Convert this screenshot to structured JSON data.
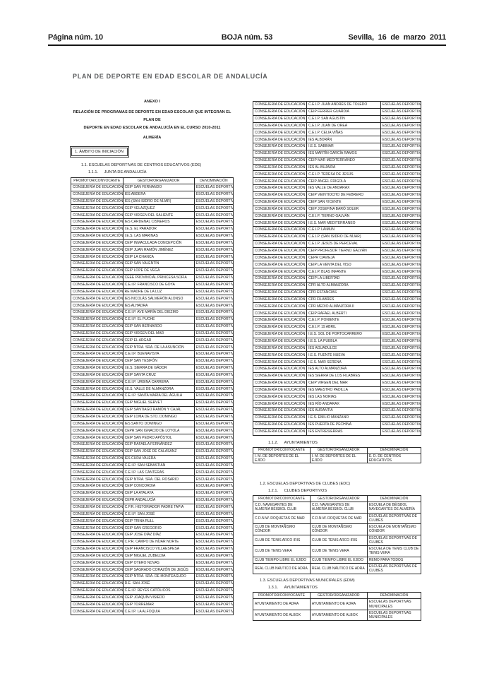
{
  "page_header": {
    "left": "Página núm. 10",
    "center": "BOJA núm. 53",
    "right": "Sevilla, 16 de marzo 2011"
  },
  "doc": {
    "title": "PLAN DE DEPORTE EN EDAD ESCOLAR DE ANDALUCÍA",
    "anexo": "ANEXO I",
    "subtitle_line1": "RELACIÓN DE PROGRAMAS DE DEPORTE EN EDAD ESCOLAR QUE INTEGRAN EL PLAN DE",
    "subtitle_line2": "DEPORTE EN EDAD ESCOLAR DE ANDALUCÍA EN EL CURSO 2010-2011",
    "province": "ALMERÍA",
    "ambito_box": "1. ÁMBITO DE INICIACIÓN"
  },
  "sections": {
    "s11": "1.1. ESCUELAS DEPORTIVAS DE CENTROS EDUCATIVOS (EDE)",
    "s111_num": "1.1.1.",
    "s111_label": "JUNTA DE ANDALUCÍA",
    "s112_num": "1.1.2.",
    "s112_label": "AYUNTAMIENTOS",
    "s12": "1.2. ESCUELAS DEPORTIVAS DE CLUBES (EDC)",
    "s121_num": "1.2.1.",
    "s121_label": "CLUBES DEPORTIVOS",
    "s13": "1.3. ESCUELAS DEPORTIVAS MUNICIPALES (EDM)",
    "s131_num": "1.3.1.",
    "s131_label": "AYUNTAMIENTOS"
  },
  "column_headers": [
    "PROMOTOR/CONVOCANTE",
    "GESTOR/ORGANIZADOR",
    "DENOMINACIÓN"
  ],
  "tables": {
    "ede_left": {
      "promotor": "CONSEJERÍA DE EDUCACIÓN",
      "denominacion": "ESCUELAS DEPORTIVAS",
      "gestores": [
        "CEIP SAN FERNANDO",
        "IES ABDERA",
        "IES (SAN ISIDRO DE NÍJAR)",
        "CEIP VELÁZQUEZ",
        "CEIP VIRGEN DEL SALIENTE",
        "IES CARDENAL CISNEROS",
        "I.E.S. EL PARADOR",
        "I.E.S. LAS MARINAS",
        "CEIP INMACULADA CONCEPCIÓN",
        "CEIP JUAN RAMÓN JIMÉNEZ",
        "CEIP LA CHANCA",
        "CEIP SAN VALENTÍN",
        "CEIP LOPE DE VEGA",
        "CEEE PROVINCIAL PRINCESA SOFÍA",
        "C.E.I.P. FRANCISCO DE GOYA",
        "RE MADRE DE LA LUZ",
        "IES NICOLÁS SALMERÓN ALONSO",
        "IES ALHADRA",
        "C.E.I.P. AVE MARÍA DEL DIEZMO",
        "C.E.I.P. EL PUCHE",
        "CEIP SAN BERNARDO",
        "CEIP VIRGEN DEL MAR",
        "CEIP EL ARGAR",
        "CEIP NTRA. SRA. DE LA ASUNCIÓN",
        "C.E.I.P. BUENAVISTA",
        "CEIP SAN TESIFÓN",
        "I.E.S. SIERRA DE GÁDOR",
        "CEIP SANTA CRUZ",
        "C.E.I.P. URBINA CARRERA",
        "I.E.S. VALLE DE ALMANZORA",
        "C.E.I.P. SANTA MARÍA DEL ÁGUILA",
        "CEIP MIGUEL SERVET",
        "CEIP SANTIAGO RAMÓN Y CAJAL",
        "CEIP LOMA DE STO. DOMINGO",
        "IES SANTO DOMINGO",
        "CEPR SAN IGNACIO DE LOYOLA",
        "CEIP SAN PEDRO APÓSTOL",
        "CEIP RAFAELA FERNÁNDEZ",
        "CEIP SAN JOSÉ DE CALASANZ",
        "IES CURA VALERA",
        "C.E.I.P. SAN SEBASTIÁN",
        "C.E.I.P. LAS CANTERAS",
        "CEIP NTRA. SRA. DEL ROSARIO",
        "CEIP CONCORDIA",
        "CEIP LA ATALAYA",
        "CEPR ANDALUCÍA",
        "C.P.R. HISTORIADOR PADRE TAPIA",
        "C.E.I.P. SAN JOSÉ",
        "CEIP TRINA RULL",
        "CEIP SAN GREGORIO",
        "CEIP JOSÉ DÍAZ DÍAZ",
        "C.P.R. CAMPO DE NÍJAR NORTE",
        "CEIP FRANCISCO VILLAESPESA",
        "CEIP MIGUEL ZUBELDIA",
        "CEIP OTERO NOVAS",
        "CEIP SAGRADO CORAZÓN DE JESÚS",
        "CEIP NTRA. SRA. DE MONTEAGUDO",
        "R.E. SAN JOSÉ",
        "C.E.I.P. REYES CATÓLICOS",
        "CEIP JOAQUÍN VISIEDO",
        "CEIP TORREMAR",
        "C.E.I.P. LA ALFOQUIA"
      ]
    },
    "ede_right": {
      "promotor": "CONSEJERÍA DE EDUCACIÓN",
      "denominacion": "ESCUELAS DEPORTIVAS",
      "gestores": [
        "C.E.I.P. JUAN ANDRÉS DE TOLEDO",
        "CEIP FERRER GUARDIA",
        "C.E.I.P. SAN AGUSTÍN",
        "C.E.I.P. JUAN DE OREA",
        "C.E.I.P. CELIA VIÑAS",
        "IES ALBORÁN",
        "I.E.S. SABINAR",
        "IES MARTÍN GARCÍA RAMOS",
        "CEIP MAR MEDITERRÁNEO",
        "IES AL-BUJAIRA",
        "C.E.I.P. TERESA DE JESÚS",
        "CEIP ÁNGEL FRIGOLA",
        "IES VALLE DE ANDARAX",
        "CEIP VEINTIOCHO DE FEBRERO",
        "CEIP SAN VICENTE",
        "CEIP JOSEFINA BARÓ SOLER",
        "C.E.I.P. TIERNO GALVÁN",
        "I.E.S. MAR MEDITERRÁNEO",
        "C.E.I.P. LAIMUN",
        "C.E.I.P. (SAN ISIDRO DE NÍJAR)",
        "C.E.I.P. JESÚS DE PERCEVAL",
        "CEIP PROFESOR TIERNO GALVÁN",
        "CEPR CIAVIEJA",
        "CEIP LA VENTA DEL VISO",
        "C.E.I.P. BLAS INFANTE",
        "CEIP LA LIBERTAD",
        "CPR ALTO ALMANZORA",
        "CPR ESTANCIAS",
        "CPR FILABRES",
        "CPR MEDIO ALMANZORA II",
        "CEIP RAFAEL ALBERTI",
        "C.E.I.P. PONIENTE",
        "C.E.I.P. 19 ABRIL",
        "I.E.S. SOL DE PORTOCARRERO",
        "I.E.S. LA PUEBLA",
        "IES AGUADULCE",
        "I.E.S. FUENTE NUEVA",
        "I.E.S. MAR SERENA",
        "IES ALTO ALMANZORA",
        "IES SIERRA DE LOS FILABRES",
        "CEIP VIRGEN DEL MAR",
        "IES MAESTRO PADILLA",
        "IES LAS NORIAS",
        "IES RÍO ANDARAX",
        "IES AURANTIA",
        "I.E.S. EMILIO MANZANO",
        "IES PUERTA DE PECHINA",
        "IES ENTRESIERRAS"
      ]
    },
    "ayuntamientos_112": {
      "rows": [
        [
          "I. M. DE DEPORTES DE EL EJIDO",
          "I. M. DE DEPORTES DE EL EJIDO",
          "E. D. DE CENTROS EDUCATIVOS"
        ]
      ]
    },
    "clubes": {
      "rows": [
        [
          "C.D. NAVEGANTES DE ALMERÍA BÉISBOL CLUB",
          "C.D. NAVEGANTES DE ALMERÍA BÉISBOL CLUB",
          "ESCUELA DE BÉISBOL NAVEGANTES DE ALMERÍA"
        ],
        [
          "C.D.N.W. ROQUETAS DE MAR",
          "C.D.N.W. ROQUETAS DE MAR",
          "ESCUELAS DEPORTIVAS DE CLUBES"
        ],
        [
          "CLUB DE MONTAÑISMO CÓNDOR",
          "CLUB DE MONTAÑISMO CÓNDOR",
          "ESCUELA DE MONTAÑISMO CÓNDOR"
        ],
        [
          "CLUB DE TENIS ARCO IRIS",
          "CLUB DE TENIS ARCO IRIS",
          "ESCUELAS DEPORTIVAS DE CLUBES"
        ],
        [
          "CLUB DE TENIS VERA",
          "CLUB DE TENIS VERA",
          "ESCUELA DE TENIS CLUB DE TENIS VERA"
        ],
        [
          "CLUB TIEMPO LIBRE EL EJIDO",
          "CLUB TIEMPO LIBRE EL EJIDO",
          "REMO PARA TODOS"
        ],
        [
          "REAL CLUB NÁUTICO DE ADRA",
          "REAL CLUB NÁUTICO DE ADRA",
          "ESCUELAS DEPORTIVAS DE CLUBES"
        ]
      ]
    },
    "edm": {
      "rows": [
        [
          "AYUNTAMIENTO DE ADRA",
          "AYUNTAMIENTO DE ADRA",
          "ESCUELAS DEPORTIVAS MUNICIPALES"
        ],
        [
          "AYUNTAMIENTO DE ALBOX",
          "AYUNTAMIENTO DE ALBOX",
          "ESCUELAS DEPORTIVAS MUNICIPALES"
        ]
      ]
    }
  },
  "colors": {
    "title_gray": "#5b5c5e",
    "rule_black": "#151515",
    "border": "#2b2b2b"
  }
}
